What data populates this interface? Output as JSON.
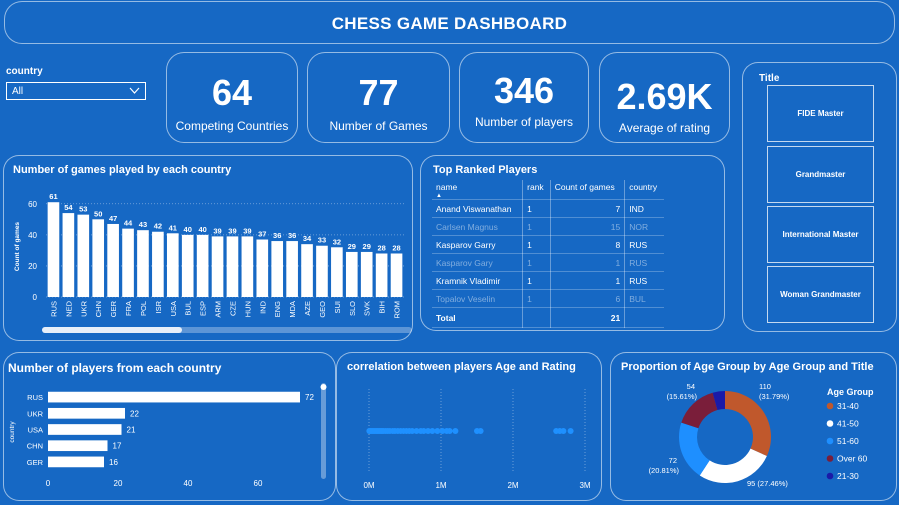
{
  "header": {
    "title": "CHESS GAME DASHBOARD"
  },
  "slicer": {
    "label": "country",
    "value": "All"
  },
  "cards": [
    {
      "value": "64",
      "label": "Competing Countries"
    },
    {
      "value": "77",
      "label": "Number of Games"
    },
    {
      "value": "346",
      "label": "Number of players"
    },
    {
      "value": "2.69K",
      "label": "Average of rating"
    }
  ],
  "title_slicer": {
    "label": "Title",
    "items": [
      "FIDE Master",
      "Grandmaster",
      "International Master",
      "Woman Grandmaster"
    ]
  },
  "games_panel_title": "Number of games played by each country",
  "top_players": {
    "title": "Top Ranked Players",
    "columns": [
      "name",
      "rank",
      "Count of games",
      "country"
    ],
    "rows": [
      {
        "name": "Anand Viswanathan",
        "rank": "1",
        "count": "7",
        "country": "IND",
        "dim": false
      },
      {
        "name": "Carlsen Magnus",
        "rank": "1",
        "count": "15",
        "country": "NOR",
        "dim": true
      },
      {
        "name": "Kasparov Garry",
        "rank": "1",
        "count": "8",
        "country": "RUS",
        "dim": false
      },
      {
        "name": "Kasparov Gary",
        "rank": "1",
        "count": "1",
        "country": "RUS",
        "dim": true
      },
      {
        "name": "Kramnik Vladimir",
        "rank": "1",
        "count": "1",
        "country": "RUS",
        "dim": false
      },
      {
        "name": "Topalov Veselin",
        "rank": "1",
        "count": "6",
        "country": "BUL",
        "dim": true
      }
    ],
    "total_label": "Total",
    "total_value": "21"
  },
  "players_panel_title": "Number of players from each country",
  "scatter_panel_title": "correlation between players Age and Rating",
  "donut_panel_title": "Proportion of Age Group by Age Group and Title",
  "chart_data": [
    {
      "type": "bar",
      "orientation": "vertical",
      "title": "Number of games played by each country",
      "ylabel": "Count of games",
      "categories": [
        "RUS",
        "NED",
        "UKR",
        "CHN",
        "GER",
        "FRA",
        "POL",
        "ISR",
        "USA",
        "BUL",
        "ESP",
        "ARM",
        "CZE",
        "HUN",
        "IND",
        "ENG",
        "MDA",
        "AZE",
        "GEO",
        "SUI",
        "SLO",
        "SVK",
        "BIH",
        "ROM"
      ],
      "values": [
        61,
        54,
        53,
        50,
        47,
        44,
        43,
        42,
        41,
        40,
        40,
        39,
        39,
        39,
        37,
        36,
        36,
        34,
        33,
        32,
        29,
        29,
        28,
        28
      ],
      "ylim": [
        0,
        65
      ],
      "yticks": [
        0,
        20,
        40,
        60
      ],
      "color": "#ffffff"
    },
    {
      "type": "bar",
      "orientation": "horizontal",
      "title": "Number of players from each country",
      "ylabel": "country",
      "categories": [
        "RUS",
        "UKR",
        "USA",
        "CHN",
        "GER"
      ],
      "values": [
        72,
        22,
        21,
        17,
        16
      ],
      "xlim": [
        0,
        80
      ],
      "xticks": [
        0,
        20,
        40,
        60
      ],
      "color": "#ffffff"
    },
    {
      "type": "scatter",
      "title": "correlation between players Age and Rating",
      "xticks": [
        "0M",
        "1M",
        "2M",
        "3M"
      ],
      "xlim": [
        0,
        3000000
      ],
      "x": [
        5000,
        20000,
        40000,
        60000,
        80000,
        100000,
        120000,
        140000,
        160000,
        180000,
        200000,
        230000,
        260000,
        290000,
        330000,
        360000,
        400000,
        440000,
        480000,
        520000,
        560000,
        600000,
        660000,
        720000,
        760000,
        820000,
        880000,
        950000,
        1020000,
        1080000,
        1120000,
        1200000,
        1500000,
        1550000,
        2600000,
        2650000,
        2700000,
        2800000
      ],
      "color": "#1e90ff"
    },
    {
      "type": "pie",
      "donut": true,
      "title": "Proportion of Age Group by Age Group and Title",
      "legend_title": "Age Group",
      "legend_position": "right",
      "slices": [
        {
          "name": "31-40",
          "value": 110,
          "label": "110",
          "pct": "(31.79%)",
          "color": "#c0582c"
        },
        {
          "name": "41-50",
          "value": 95,
          "label": "95 (27.46%)",
          "pct": "",
          "color": "#ffffff"
        },
        {
          "name": "51-60",
          "value": 72,
          "label": "72",
          "pct": "(20.81%)",
          "color": "#1e8fff"
        },
        {
          "name": "Over 60",
          "value": 54,
          "label": "54",
          "pct": "(15.61%)",
          "color": "#7a1e3a"
        },
        {
          "name": "21-30",
          "value": 15,
          "label": "",
          "pct": "",
          "color": "#1a1aa8"
        }
      ]
    }
  ]
}
